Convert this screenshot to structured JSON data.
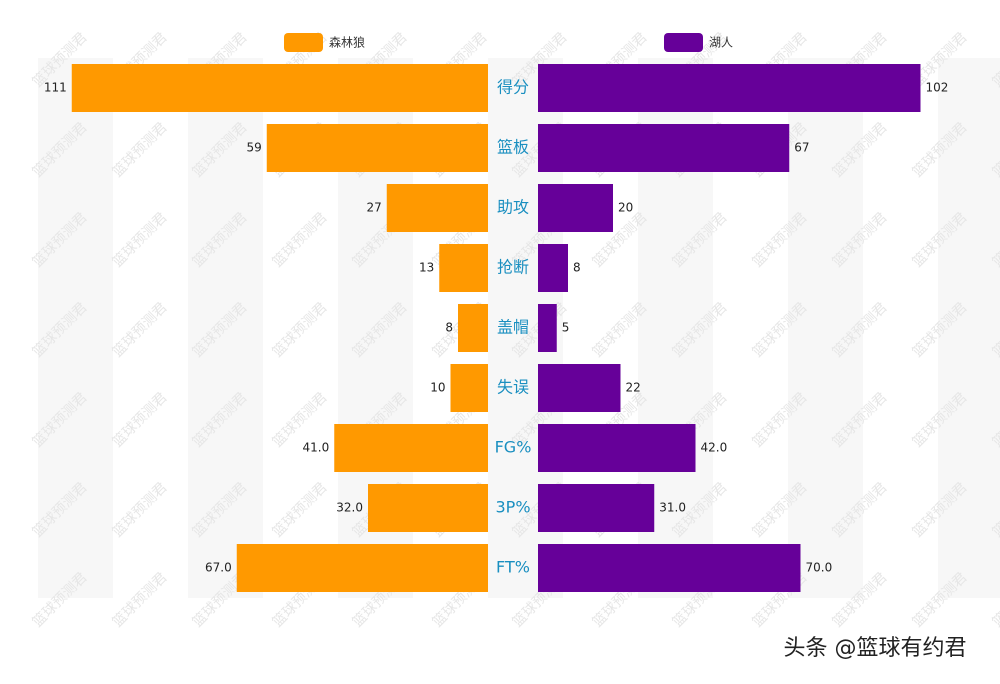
{
  "chart_data": {
    "type": "butterfly-bar",
    "categories": [
      "得分",
      "篮板",
      "助攻",
      "抢断",
      "盖帽",
      "失误",
      "FG%",
      "3P%",
      "FT%"
    ],
    "series": [
      {
        "name": "森林狼",
        "color": "#ff9900",
        "side": "left",
        "values": [
          111,
          59,
          27,
          13,
          8,
          10,
          41,
          32,
          67
        ],
        "value_labels": [
          "111",
          "59",
          "27",
          "13",
          "8",
          "10",
          "41.0",
          "32.0",
          "67.0"
        ]
      },
      {
        "name": "湖人",
        "color": "#660099",
        "side": "right",
        "values": [
          102,
          67,
          20,
          8,
          5,
          22,
          42,
          31,
          70
        ],
        "value_labels": [
          "102",
          "67",
          "20",
          "8",
          "5",
          "22",
          "42.0",
          "31.0",
          "70.0"
        ]
      }
    ],
    "xlim": [
      0,
      112
    ],
    "watermark": "篮球预测君",
    "footer": "头条 @篮球有约君"
  }
}
